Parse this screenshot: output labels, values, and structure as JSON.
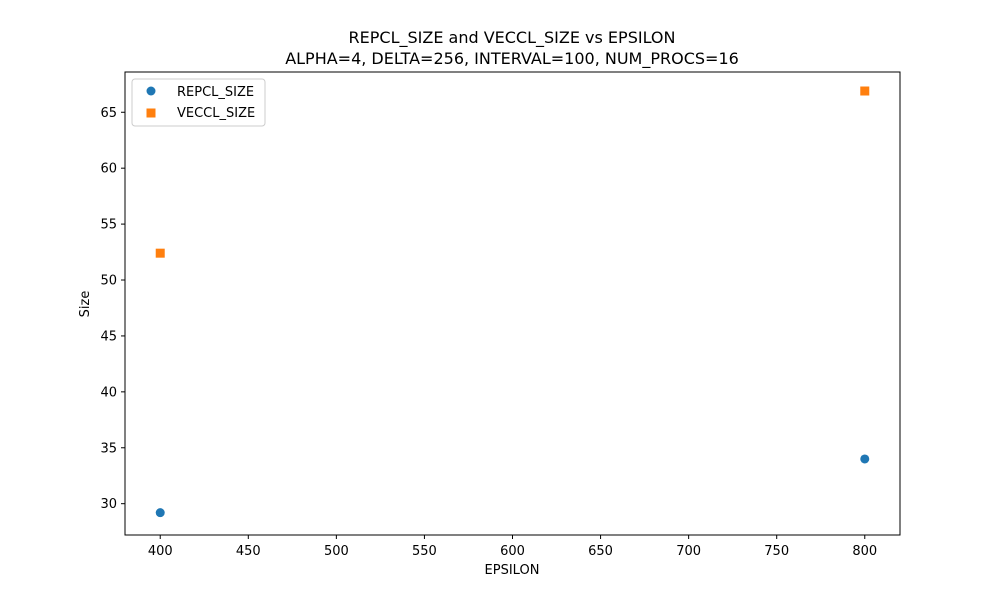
{
  "chart_data": {
    "type": "scatter",
    "title": "REPCL_SIZE and VECCL_SIZE vs EPSILON",
    "subtitle": "ALPHA=4, DELTA=256, INTERVAL=100, NUM_PROCS=16",
    "xlabel": "EPSILON",
    "ylabel": "Size",
    "xlim": [
      380,
      820
    ],
    "ylim": [
      27.2,
      68.6
    ],
    "xticks": [
      400,
      450,
      500,
      550,
      600,
      650,
      700,
      750,
      800
    ],
    "yticks": [
      30,
      35,
      40,
      45,
      50,
      55,
      60,
      65
    ],
    "grid": false,
    "legend_position": "top-left",
    "series": [
      {
        "name": "REPCL_SIZE",
        "marker": "circle",
        "color": "#1f77b4",
        "points": [
          {
            "x": 400,
            "y": 29.2
          },
          {
            "x": 800,
            "y": 34.0
          }
        ]
      },
      {
        "name": "VECCL_SIZE",
        "marker": "square",
        "color": "#ff7f0e",
        "points": [
          {
            "x": 400,
            "y": 52.4
          },
          {
            "x": 800,
            "y": 66.9
          }
        ]
      }
    ]
  }
}
